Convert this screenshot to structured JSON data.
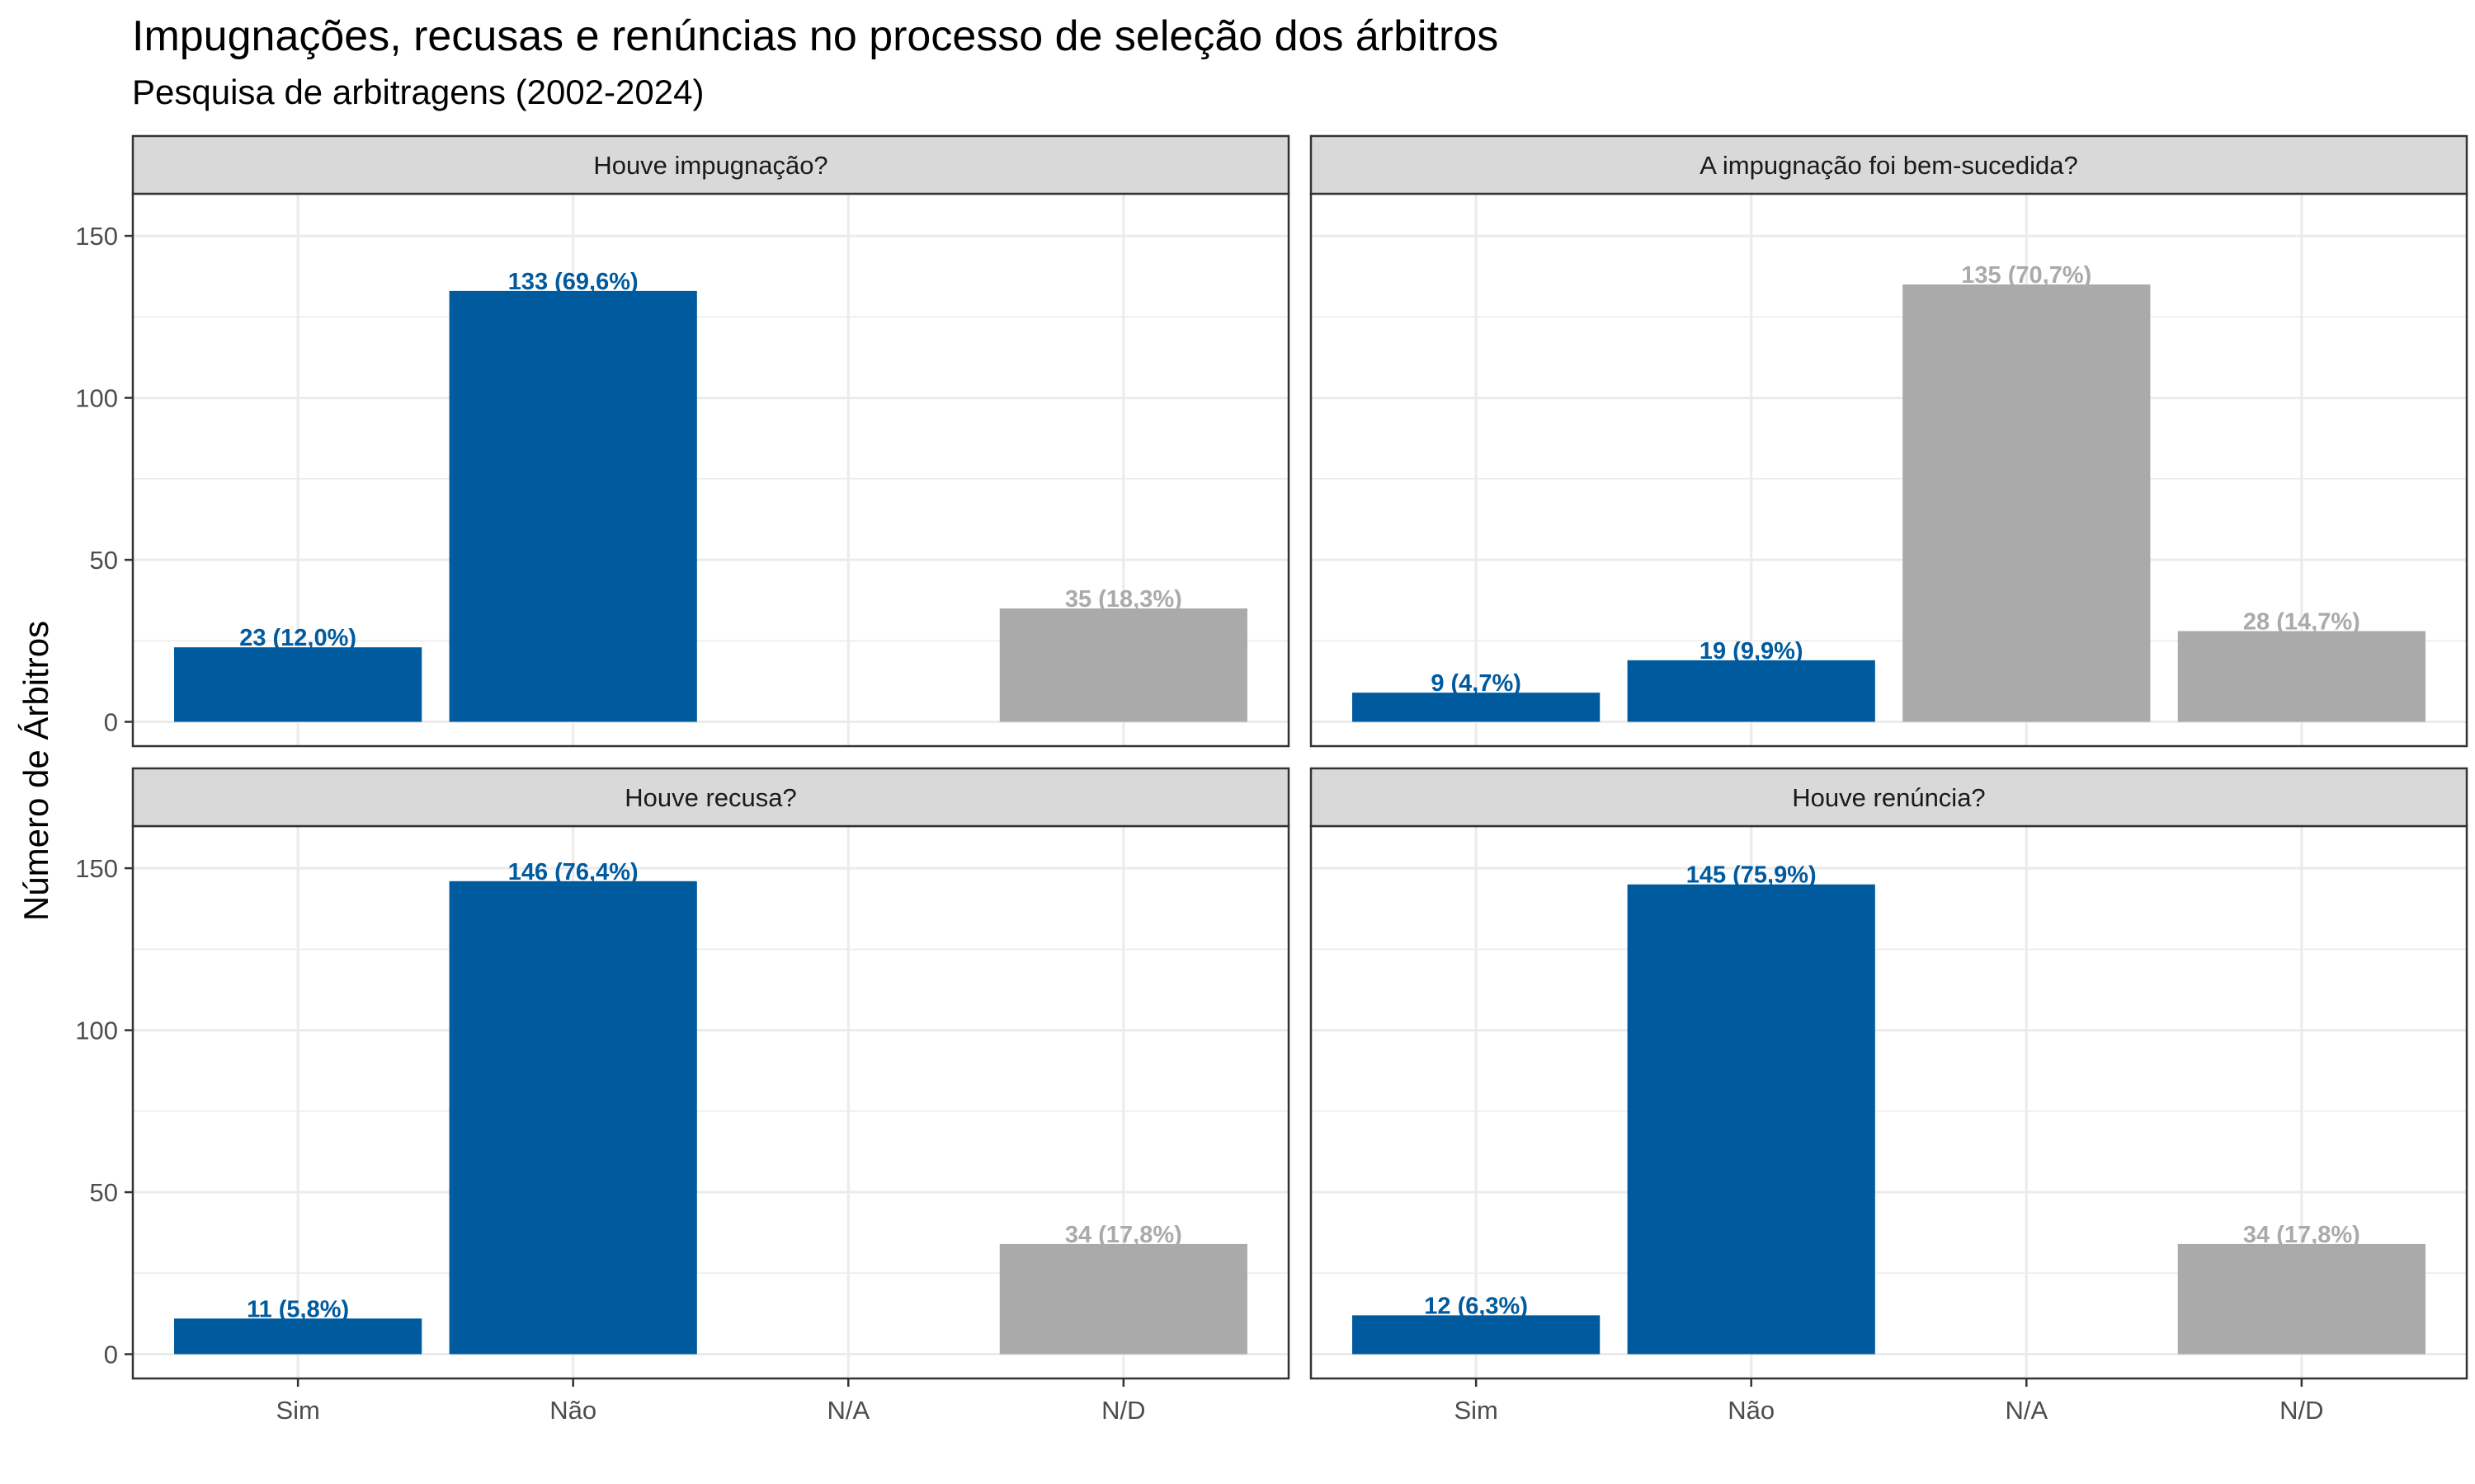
{
  "title": "Impugnações, recusas e renúncias no processo de seleção dos árbitros",
  "subtitle": "Pesquisa de arbitragens (2002-2024)",
  "colors": {
    "primary": "#005a9e",
    "missing": "#aaaaaa",
    "strip_bg": "#d9d9d9",
    "grid": "#ebebeb"
  },
  "chart_data": {
    "type": "bar",
    "title": "Impugnações, recusas e renúncias no processo de seleção dos árbitros",
    "subtitle": "Pesquisa de arbitragens (2002-2024)",
    "ylabel": "Número de Árbitros",
    "xlabel": "",
    "categories": [
      "Sim",
      "Não",
      "N/A",
      "N/D"
    ],
    "ylim": [
      -7.5,
      163
    ],
    "yticks": [
      0,
      50,
      100,
      150
    ],
    "grid": true,
    "legend": "none",
    "panels": [
      {
        "title": "Houve impugnação?",
        "values": [
          23,
          133,
          null,
          35
        ],
        "labels": [
          "23 (12,0%)",
          "133 (69,6%)",
          null,
          "35 (18,3%)"
        ],
        "colors": [
          "#005a9e",
          "#005a9e",
          null,
          "#aaaaaa"
        ]
      },
      {
        "title": "A impugnação foi bem-sucedida?",
        "values": [
          9,
          19,
          135,
          28
        ],
        "labels": [
          "9 (4,7%)",
          "19 (9,9%)",
          "135 (70,7%)",
          "28 (14,7%)"
        ],
        "colors": [
          "#005a9e",
          "#005a9e",
          "#aaaaaa",
          "#aaaaaa"
        ]
      },
      {
        "title": "Houve recusa?",
        "values": [
          11,
          146,
          null,
          34
        ],
        "labels": [
          "11 (5,8%)",
          "146 (76,4%)",
          null,
          "34 (17,8%)"
        ],
        "colors": [
          "#005a9e",
          "#005a9e",
          null,
          "#aaaaaa"
        ]
      },
      {
        "title": "Houve renúncia?",
        "values": [
          12,
          145,
          null,
          34
        ],
        "labels": [
          "12 (6,3%)",
          "145 (75,9%)",
          null,
          "34 (17,8%)"
        ],
        "colors": [
          "#005a9e",
          "#005a9e",
          null,
          "#aaaaaa"
        ]
      }
    ]
  }
}
